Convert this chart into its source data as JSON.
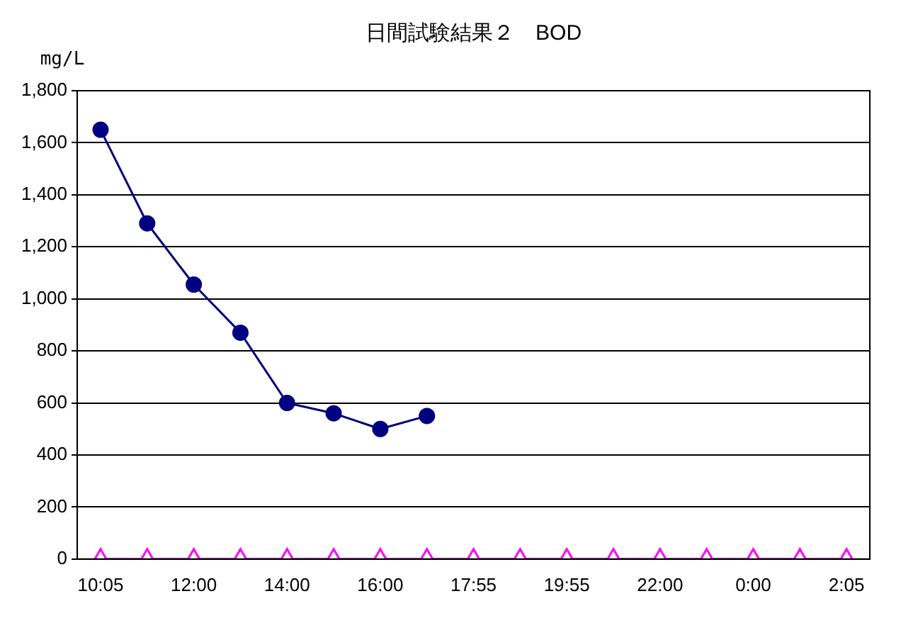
{
  "chart_data": {
    "type": "line",
    "title": "日間試験結果２　BOD",
    "ylabel": "mg/L",
    "categories": [
      "10:05",
      null,
      "12:00",
      null,
      "14:00",
      null,
      "16:00",
      null,
      "17:55",
      null,
      "19:55",
      null,
      "22:00",
      null,
      "0:00",
      null,
      "2:05"
    ],
    "series": [
      {
        "color": "#000080",
        "marker": "circle",
        "values": [
          1650,
          1290,
          1055,
          870,
          600,
          560,
          500,
          550,
          null,
          null,
          null,
          null,
          null,
          null,
          null,
          null,
          null
        ]
      },
      {
        "color": "#ff00ff",
        "marker": "triangle",
        "values": [
          0,
          0,
          0,
          0,
          0,
          0,
          0,
          0,
          0,
          0,
          0,
          0,
          0,
          0,
          0,
          0,
          0
        ]
      }
    ],
    "ylim": [
      0,
      1800
    ],
    "yticks": [
      0,
      200,
      400,
      600,
      800,
      {
        "value": 1000,
        "label": "1,000"
      },
      {
        "value": 1200,
        "label": "1,200"
      },
      {
        "value": 1400,
        "label": "1,400"
      },
      {
        "value": 1600,
        "label": "1,600"
      },
      {
        "value": 1800,
        "label": "1,800"
      }
    ],
    "grid": "y",
    "legend": false
  }
}
